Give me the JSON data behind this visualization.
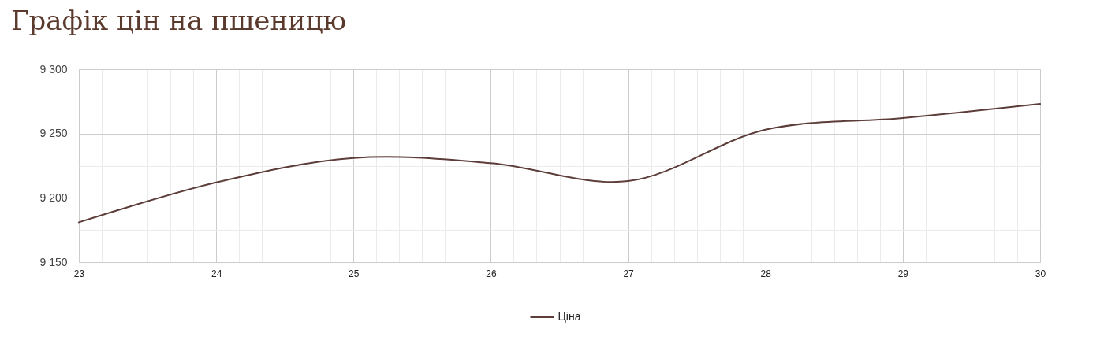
{
  "chart_data": {
    "type": "line",
    "title": "Графік цін на пшеницю",
    "x": [
      23,
      24,
      25,
      26,
      27,
      28,
      29,
      30
    ],
    "series": [
      {
        "name": "Ціна",
        "color": "#5d3d3a",
        "values": [
          9181,
          9212,
          9231,
          9227,
          9213,
          9253,
          9262,
          9273
        ]
      }
    ],
    "xlim": [
      23,
      30
    ],
    "ylim": [
      9150,
      9300
    ],
    "xticks": [
      23,
      24,
      25,
      26,
      27,
      28,
      29,
      30
    ],
    "yticks": [
      {
        "value": 9150,
        "label": "9 150"
      },
      {
        "value": 9200,
        "label": "9 200"
      },
      {
        "value": 9250,
        "label": "9 250"
      },
      {
        "value": 9300,
        "label": "9 300"
      }
    ],
    "grid": true,
    "legend": "bottom",
    "line_style": "solid"
  }
}
